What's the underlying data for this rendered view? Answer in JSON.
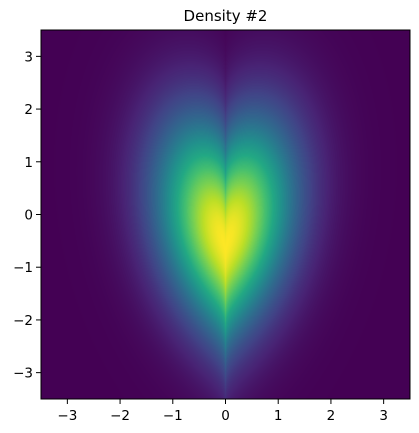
{
  "chart_data": {
    "type": "heatmap",
    "title": "Density #2",
    "xlabel": "",
    "ylabel": "",
    "xlim": [
      -3.5,
      3.5
    ],
    "ylim": [
      -3.5,
      3.5
    ],
    "x_ticks": [
      -3,
      -2,
      -1,
      0,
      1,
      2,
      3
    ],
    "y_ticks": [
      -3,
      -2,
      -1,
      0,
      1,
      2,
      3
    ],
    "x_tick_labels": [
      "−3",
      "−2",
      "−1",
      "0",
      "1",
      "2",
      "3"
    ],
    "y_tick_labels": [
      "−3",
      "−2",
      "−1",
      "0",
      "1",
      "2",
      "3"
    ],
    "colormap": "viridis",
    "grid": false,
    "shape": "heart",
    "peak_location": [
      0,
      0.2
    ]
  }
}
